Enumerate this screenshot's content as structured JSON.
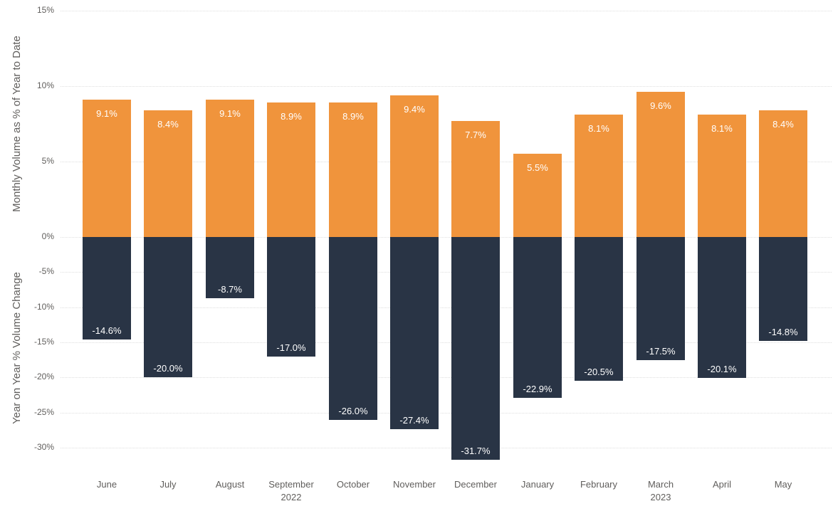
{
  "chart_data": {
    "type": "bar",
    "subtype": "dual-axis-diverging-column",
    "title": "",
    "legend_position": "none",
    "categories": [
      "June",
      "July",
      "August",
      "September",
      "October",
      "November",
      "December",
      "January",
      "February",
      "March",
      "April",
      "May"
    ],
    "x_sublabels": [
      "",
      "",
      "",
      "2022",
      "",
      "",
      "",
      "",
      "",
      "2023",
      "",
      ""
    ],
    "series": [
      {
        "name": "Monthly Volume as % of Year to Date",
        "axis": "upper",
        "color": "#F0943C",
        "values": [
          9.1,
          8.4,
          9.1,
          8.9,
          8.9,
          9.4,
          7.7,
          5.5,
          8.1,
          9.6,
          8.1,
          8.4
        ],
        "labels": [
          "9.1%",
          "8.4%",
          "9.1%",
          "8.9%",
          "8.9%",
          "9.4%",
          "7.7%",
          "5.5%",
          "8.1%",
          "9.6%",
          "8.1%",
          "8.4%"
        ]
      },
      {
        "name": "Year on Year % Volume Change",
        "axis": "lower",
        "color": "#293445",
        "values": [
          -14.6,
          -20.0,
          -8.7,
          -17.0,
          -26.0,
          -27.4,
          -31.7,
          -22.9,
          -20.5,
          -17.5,
          -20.1,
          -14.8
        ],
        "labels": [
          "-14.6%",
          "-20.0%",
          "-8.7%",
          "-17.0%",
          "-26.0%",
          "-27.4%",
          "-31.7%",
          "-22.9%",
          "-20.5%",
          "-17.5%",
          "-20.1%",
          "-14.8%"
        ]
      }
    ],
    "y_axis_upper": {
      "title": "Monthly Volume as % of Year to Date",
      "range": [
        0,
        15
      ],
      "ticks": [
        {
          "value": 15,
          "label": "15%"
        },
        {
          "value": 10,
          "label": "10%"
        },
        {
          "value": 5,
          "label": "5%"
        },
        {
          "value": 0,
          "label": "0%"
        }
      ]
    },
    "y_axis_lower": {
      "title": "Year on Year % Volume Change",
      "range": [
        -32.5,
        0
      ],
      "ticks": [
        {
          "value": -5,
          "label": "-5%"
        },
        {
          "value": -10,
          "label": "-10%"
        },
        {
          "value": -15,
          "label": "-15%"
        },
        {
          "value": -20,
          "label": "-20%"
        },
        {
          "value": -25,
          "label": "-25%"
        },
        {
          "value": -30,
          "label": "-30%"
        }
      ]
    },
    "layout": {
      "grid": "dotted-horizontal",
      "data_label_position": "inside-end",
      "background": "#FFFFFF"
    },
    "colors": {
      "positive_bar": "#F0943C",
      "negative_bar": "#293445",
      "gridline": "#DEDEDE",
      "axis_text": "#605E5C",
      "bar_label_text": "#FFFFFF"
    }
  }
}
